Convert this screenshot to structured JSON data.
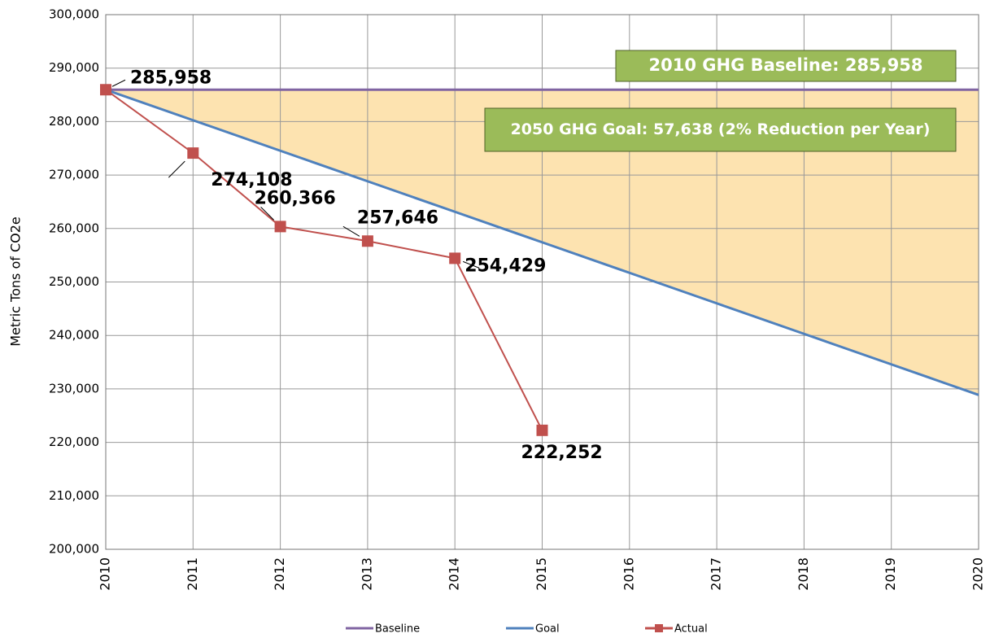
{
  "chart_data": {
    "type": "line",
    "y_label": "Metric Tons of CO2e",
    "categories": [
      "2010",
      "2011",
      "2012",
      "2013",
      "2014",
      "2015",
      "2016",
      "2017",
      "2018",
      "2019",
      "2020"
    ],
    "series": [
      {
        "name": "Baseline",
        "color": "#8064a2",
        "values": [
          285958,
          285958,
          285958,
          285958,
          285958,
          285958,
          285958,
          285958,
          285958,
          285958,
          285958
        ]
      },
      {
        "name": "Goal",
        "color": "#4f81bd",
        "values": [
          285958,
          280250,
          274542,
          268834,
          263126,
          257418,
          251710,
          246002,
          240294,
          234586,
          228878
        ]
      },
      {
        "name": "Actual",
        "color": "#c0504d",
        "marker": "square",
        "values": [
          285958,
          274108,
          260366,
          257646,
          254429,
          222252,
          null,
          null,
          null,
          null,
          null
        ],
        "value_labels": [
          "285,958",
          "274,108",
          "260,366",
          "257,646",
          "254,429",
          "222,252",
          null,
          null,
          null,
          null,
          null
        ]
      }
    ],
    "fill_between": {
      "color": "#fde3b0"
    },
    "annotations": [
      "2010 GHG Baseline: 285,958",
      "2050 GHG Goal: 57,638 (2% Reduction per Year)"
    ],
    "ylim": [
      200000,
      300000
    ],
    "yticks": [
      {
        "value": 200000,
        "label": "200,000"
      },
      {
        "value": 210000,
        "label": "210,000"
      },
      {
        "value": 220000,
        "label": "220,000"
      },
      {
        "value": 230000,
        "label": "230,000"
      },
      {
        "value": 240000,
        "label": "240,000"
      },
      {
        "value": 250000,
        "label": "250,000"
      },
      {
        "value": 260000,
        "label": "260,000"
      },
      {
        "value": 270000,
        "label": "270,000"
      },
      {
        "value": 280000,
        "label": "280,000"
      },
      {
        "value": 290000,
        "label": "290,000"
      },
      {
        "value": 300000,
        "label": "300,000"
      }
    ],
    "grid": true,
    "legend": "bottom"
  }
}
